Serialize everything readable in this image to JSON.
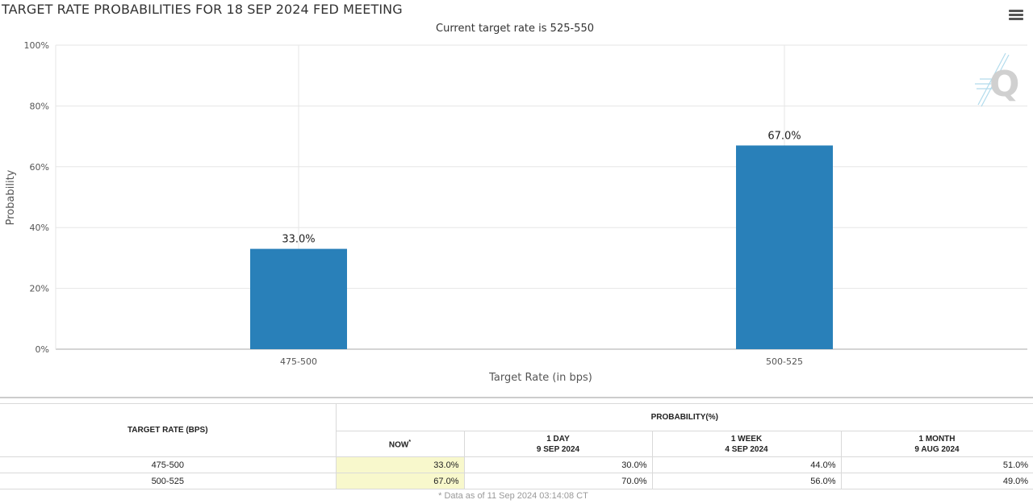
{
  "chart_data": {
    "type": "bar",
    "title": "TARGET RATE PROBABILITIES FOR 18 SEP 2024 FED MEETING",
    "subtitle": "Current target rate is 525-550",
    "categories": [
      "475-500",
      "500-525"
    ],
    "values": [
      33.0,
      67.0
    ],
    "data_labels": [
      "33.0%",
      "67.0%"
    ],
    "xlabel": "Target Rate (in bps)",
    "ylabel": "Probability",
    "ylim": [
      0,
      100
    ],
    "yticks": [
      "0%",
      "20%",
      "40%",
      "60%",
      "80%",
      "100%"
    ],
    "grid": true,
    "bar_color": "#2980b9"
  },
  "menu": {
    "icon": "hamburger-menu-icon"
  },
  "watermark": {
    "icon": "q-logo-icon",
    "text": "Q"
  },
  "table": {
    "target_header": "TARGET RATE (BPS)",
    "probability_header": "PROBABILITY(%)",
    "columns": [
      {
        "title": "NOW",
        "sup": "*",
        "date": ""
      },
      {
        "title": "1 DAY",
        "date": "9 SEP 2024"
      },
      {
        "title": "1 WEEK",
        "date": "4 SEP 2024"
      },
      {
        "title": "1 MONTH",
        "date": "9 AUG 2024"
      }
    ],
    "rows": [
      {
        "rate": "475-500",
        "now": "33.0%",
        "day": "30.0%",
        "week": "44.0%",
        "month": "51.0%"
      },
      {
        "rate": "500-525",
        "now": "67.0%",
        "day": "70.0%",
        "week": "56.0%",
        "month": "49.0%"
      }
    ],
    "footnote": "* Data as of 11 Sep 2024 03:14:08 CT"
  }
}
